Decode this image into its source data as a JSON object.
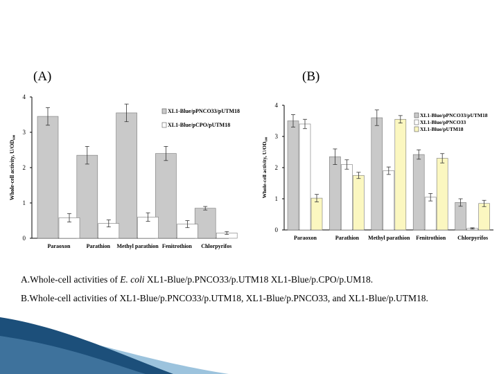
{
  "panels": {
    "a_label": "(A)",
    "b_label": "(B)"
  },
  "captions": {
    "a_prefix": "A.Whole-cell activities of ",
    "a_italic": "E. coli",
    "a_rest": " XL1-Blue/p.PNCO33/p.UTM18 XL1-Blue/p.CPO/p.UM18.",
    "b": "B.Whole-cell activities of XL1-Blue/p.PNCO33/p.UTM18, XL1-Blue/p.PNCO33, and XL1-Blue/p.UTM18."
  },
  "colors": {
    "gray_fill": "#c9c9c9",
    "white_fill": "#ffffff",
    "yellow_fill": "#fbf7c0",
    "deco_dark": "#1c4f7a",
    "deco_light": "#9cc3dd"
  },
  "chart_data": [
    {
      "type": "bar",
      "title": "",
      "xlabel": "",
      "ylabel": "Whole-cell activity, U/OD₆₀₀",
      "ylim": [
        0,
        4
      ],
      "yticks": [
        "0",
        "1",
        "2",
        "3",
        "4"
      ],
      "categories": [
        "Paraoxon",
        "Parathion",
        "Methyl parathion",
        "Fenitrothion",
        "Chlorpyrifos"
      ],
      "legend": "top-right",
      "series": [
        {
          "name": "XL1-Blue/pPNCO33/pUTM18",
          "color": "#c9c9c9",
          "values": [
            3.45,
            2.35,
            3.55,
            2.4,
            0.85
          ],
          "errors": [
            0.25,
            0.25,
            0.25,
            0.2,
            0.05
          ]
        },
        {
          "name": "XL1-Blue/pCPO/pUTM18",
          "color": "#ffffff",
          "values": [
            0.58,
            0.42,
            0.6,
            0.4,
            0.15
          ],
          "errors": [
            0.12,
            0.1,
            0.12,
            0.1,
            0.04
          ]
        }
      ]
    },
    {
      "type": "bar",
      "title": "",
      "xlabel": "",
      "ylabel": "Whole-cell activity, U/OD₆₀₀",
      "ylim": [
        0,
        4
      ],
      "yticks": [
        "0",
        "1",
        "2",
        "3",
        "4"
      ],
      "categories": [
        "Paraoxon",
        "Parathion",
        "Methyl parathion",
        "Fenitrothion",
        "Chlorpyrifos"
      ],
      "legend": "top-right",
      "series": [
        {
          "name": "XL1-Blue/pPNCO33/pUTM18",
          "color": "#c9c9c9",
          "values": [
            3.5,
            2.35,
            3.6,
            2.42,
            0.88
          ],
          "errors": [
            0.2,
            0.25,
            0.25,
            0.15,
            0.12
          ]
        },
        {
          "name": "XL1-Blue/pPNCO33",
          "color": "#ffffff",
          "values": [
            3.4,
            2.1,
            1.9,
            1.05,
            0.05
          ],
          "errors": [
            0.15,
            0.15,
            0.12,
            0.12,
            0.02
          ]
        },
        {
          "name": "XL1-Blue/pUTM18",
          "color": "#fbf7c0",
          "values": [
            1.02,
            1.75,
            3.55,
            2.3,
            0.85
          ],
          "errors": [
            0.12,
            0.1,
            0.12,
            0.15,
            0.1
          ]
        }
      ]
    }
  ]
}
